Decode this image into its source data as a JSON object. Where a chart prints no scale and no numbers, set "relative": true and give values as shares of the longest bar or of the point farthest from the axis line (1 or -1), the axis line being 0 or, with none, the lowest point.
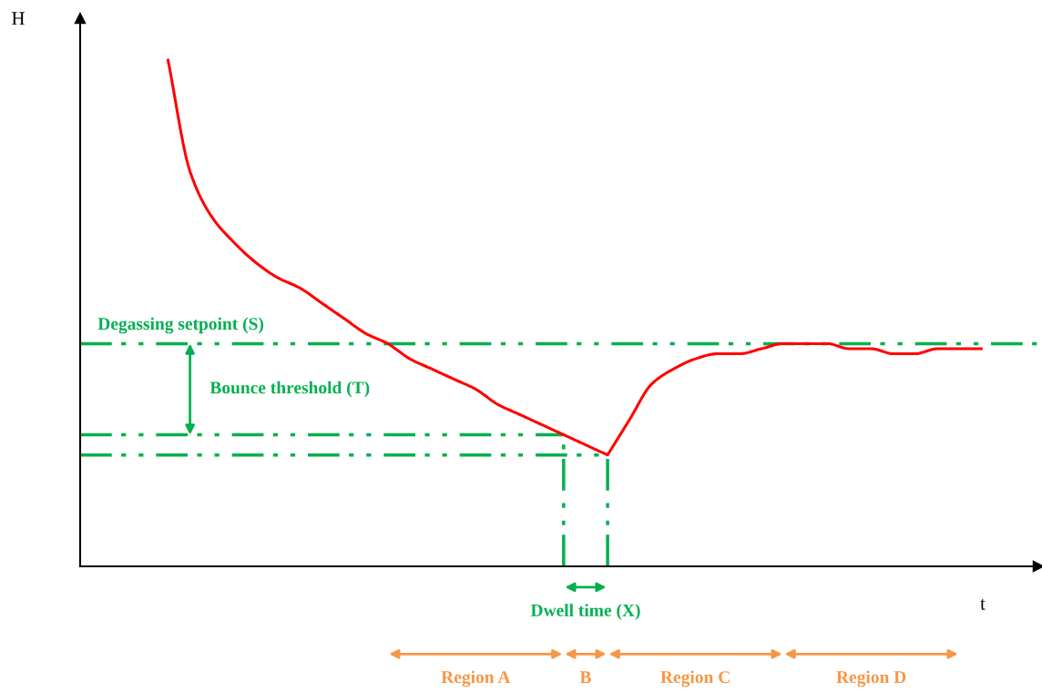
{
  "chart_data": {
    "type": "line",
    "relative": true,
    "xlabel": "t",
    "categories": [
      null,
      null,
      null,
      null,
      null,
      null,
      null,
      null,
      null,
      null,
      null,
      null,
      null,
      null,
      null,
      null,
      null,
      null,
      null,
      null,
      null,
      null,
      null,
      null,
      null,
      null,
      null,
      null,
      null,
      null,
      null,
      null,
      null,
      null,
      null,
      null,
      null,
      null
    ],
    "series": [
      {
        "color": "#ff0000",
        "values": [
          1.0,
          0.78,
          0.69,
          0.64,
          0.6,
          0.57,
          0.55,
          0.52,
          0.49,
          0.46,
          0.44,
          0.41,
          0.39,
          0.37,
          0.35,
          0.32,
          0.3,
          0.28,
          0.26,
          0.24,
          0.22,
          0.29,
          0.36,
          0.39,
          0.41,
          0.42,
          0.42,
          0.43,
          0.44,
          0.44,
          0.44,
          0.43,
          0.43,
          0.42,
          0.42,
          0.43,
          0.43,
          0.43
        ]
      }
    ],
    "ref_lines": [
      {
        "axis": "y",
        "value": 0.44,
        "label": "Degassing setpoint (S)",
        "color": "#00b050"
      },
      {
        "axis": "y",
        "value": 0.26,
        "color": "#00b050"
      },
      {
        "axis": "y",
        "value": 0.22,
        "color": "#00b050"
      }
    ],
    "annotations": [
      "Bounce threshold (T)",
      "Dwell time (X)",
      "Region A",
      "B",
      "Region C",
      "Region D",
      "H"
    ],
    "grid": false,
    "legend": false
  }
}
